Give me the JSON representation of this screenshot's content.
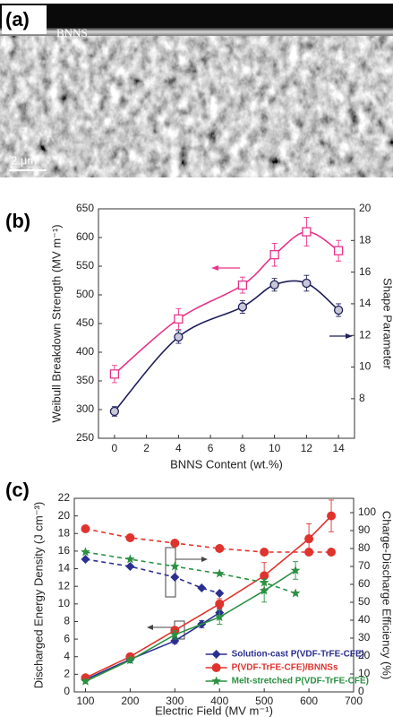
{
  "image_panel": {
    "panel_label": "(a)",
    "layer_label": "BNNS",
    "scale_bar": "2 μm"
  },
  "chart_data": [
    {
      "type": "line",
      "panel_label": "(b)",
      "smooth": true,
      "xlabel": "BNNS Content (wt.%)",
      "ylabel": "Weibull Breakdown Strength (MV m⁻¹)",
      "y2label": "Shape Parameter",
      "x": [
        0,
        4,
        8,
        10,
        12,
        14
      ],
      "xlim": [
        -1,
        15
      ],
      "xticks": [
        0,
        2,
        4,
        6,
        8,
        10,
        12,
        14
      ],
      "ylim": [
        250,
        650
      ],
      "yticks": [
        250,
        300,
        350,
        400,
        450,
        500,
        550,
        600,
        650
      ],
      "y2lim": [
        5.5,
        20
      ],
      "y2ticks": [
        8,
        10,
        12,
        14,
        16,
        18,
        20
      ],
      "series": [
        {
          "color": "#e8338a",
          "marker": "square-open",
          "values": [
            362,
            458,
            517,
            570,
            610,
            577
          ],
          "errors": [
            15,
            18,
            14,
            20,
            25,
            18
          ]
        },
        {
          "axis": "y2",
          "color": "#1f1f5c",
          "marker": "circle-open",
          "values": [
            7.2,
            11.9,
            13.8,
            15.2,
            15.3,
            13.6
          ],
          "errors": [
            0.3,
            0.4,
            0.4,
            0.4,
            0.5,
            0.4
          ]
        }
      ]
    },
    {
      "type": "line",
      "panel_label": "(c)",
      "smooth": false,
      "legend": "lower right",
      "xlabel": "Electric Field (MV m⁻¹)",
      "ylabel": "Discharged Energy Density (J cm⁻³)",
      "y2label": "Charge-Discharge Efficiency (%)",
      "xlim": [
        75,
        700
      ],
      "xticks": [
        100,
        200,
        300,
        400,
        500,
        600,
        700
      ],
      "ylim": [
        0,
        22
      ],
      "yticks": [
        0,
        2,
        4,
        6,
        8,
        10,
        12,
        14,
        16,
        18,
        20,
        22
      ],
      "y2lim": [
        0,
        108
      ],
      "y2ticks": [
        0,
        10,
        20,
        30,
        40,
        50,
        60,
        70,
        80,
        90,
        100
      ],
      "series": [
        {
          "name": "Solution-cast P(VDF-TrFE-CFE)",
          "color": "#2b2f8f",
          "marker": "diamond",
          "x": [
            100,
            200,
            300,
            360,
            400
          ],
          "values": [
            1.4,
            3.7,
            5.8,
            7.7,
            9.0
          ],
          "errors": [
            0.2,
            0.2,
            0.3,
            0.4,
            0.5
          ]
        },
        {
          "name": "P(VDF-TrFE-CFE)/BNNSs",
          "color": "#e0332e",
          "marker": "circle",
          "x": [
            100,
            200,
            300,
            400,
            500,
            600,
            650
          ],
          "values": [
            1.6,
            4.0,
            7.0,
            10.0,
            13.2,
            17.4,
            20.0
          ],
          "errors": [
            0.2,
            0.3,
            0.4,
            0.6,
            1.5,
            1.7,
            1.8
          ]
        },
        {
          "name": "Melt-stretched P(VDF-TrFE-CFE)",
          "color": "#2a9142",
          "marker": "star",
          "x": [
            100,
            200,
            300,
            400,
            500,
            570
          ],
          "values": [
            1.2,
            3.6,
            6.5,
            8.5,
            11.5,
            13.8
          ],
          "errors": [
            0.2,
            0.3,
            0.5,
            0.8,
            1.3,
            1.0
          ]
        },
        {
          "axis": "y2",
          "dashed": true,
          "color": "#2b2f8f",
          "marker": "diamond",
          "x": [
            100,
            200,
            300,
            360,
            400
          ],
          "values": [
            74,
            70,
            64,
            58,
            55
          ]
        },
        {
          "axis": "y2",
          "dashed": true,
          "color": "#e0332e",
          "marker": "circle",
          "x": [
            100,
            200,
            300,
            400,
            500,
            600,
            650
          ],
          "values": [
            91,
            86,
            83,
            80,
            78,
            78,
            78
          ]
        },
        {
          "axis": "y2",
          "dashed": true,
          "color": "#2a9142",
          "marker": "star",
          "x": [
            100,
            200,
            300,
            400,
            500,
            570
          ],
          "values": [
            78,
            74,
            70,
            66,
            61,
            55
          ]
        }
      ]
    }
  ]
}
